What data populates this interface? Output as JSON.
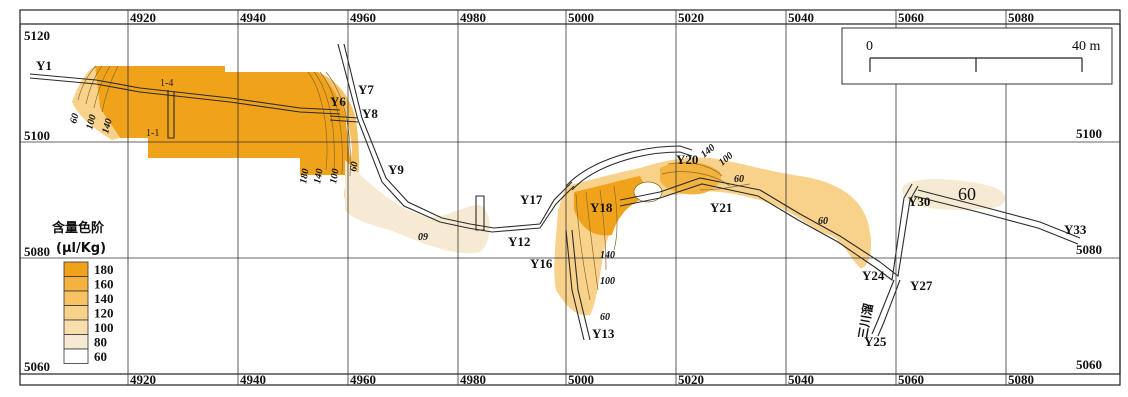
{
  "map": {
    "x_ticks_top": [
      "4920",
      "4940",
      "4960",
      "4980",
      "5000",
      "5020",
      "5040",
      "5060",
      "5080"
    ],
    "x_ticks_bottom": [
      "4920",
      "4940",
      "4960",
      "4980",
      "5000",
      "5020",
      "5040",
      "5060",
      "5080"
    ],
    "y_ticks_left": [
      "5120",
      "5100",
      "5080",
      "5060"
    ],
    "y_ticks_right": [
      "5100",
      "5080",
      "5060"
    ]
  },
  "scale_bar": {
    "start_label": "0",
    "end_label": "40 m"
  },
  "legend": {
    "title": "含量色阶",
    "unit": "(μl/Kg)",
    "levels": [
      {
        "value": "180",
        "color": "#f1a21b"
      },
      {
        "value": "160",
        "color": "#f4b33f"
      },
      {
        "value": "140",
        "color": "#f6c263"
      },
      {
        "value": "120",
        "color": "#f8d28a"
      },
      {
        "value": "100",
        "color": "#fadfae"
      },
      {
        "value": "80",
        "color": "#f6ead3"
      },
      {
        "value": "60",
        "color": "#ffffff"
      }
    ]
  },
  "stations": {
    "y1": "Y1",
    "y6": "Y6",
    "y7": "Y7",
    "y8": "Y8",
    "y9": "Y9",
    "y12": "Y12",
    "y13": "Y13",
    "y16": "Y16",
    "y17": "Y17",
    "y18": "Y18",
    "y20": "Y20",
    "y21": "Y21",
    "y24": "Y24",
    "y25": "Y25",
    "y27": "Y27",
    "y30": "Y30",
    "y33": "Y33"
  },
  "annotations": {
    "drift_1_4": "1-4",
    "drift_1_1": "1-1",
    "side_label": "三川溜",
    "zone_60": "60"
  },
  "contour_labels": {
    "l60_a": "60",
    "l100_a": "100",
    "l140_a": "140",
    "l180_b": "180",
    "l140_b": "140",
    "l100_b": "100",
    "l60_b": "60",
    "l09": "09",
    "l140_c": "140",
    "l100_c": "100",
    "l60_c": "60",
    "l140_d": "140",
    "l100_d": "100",
    "l60_d": "60",
    "l60_e": "60"
  }
}
